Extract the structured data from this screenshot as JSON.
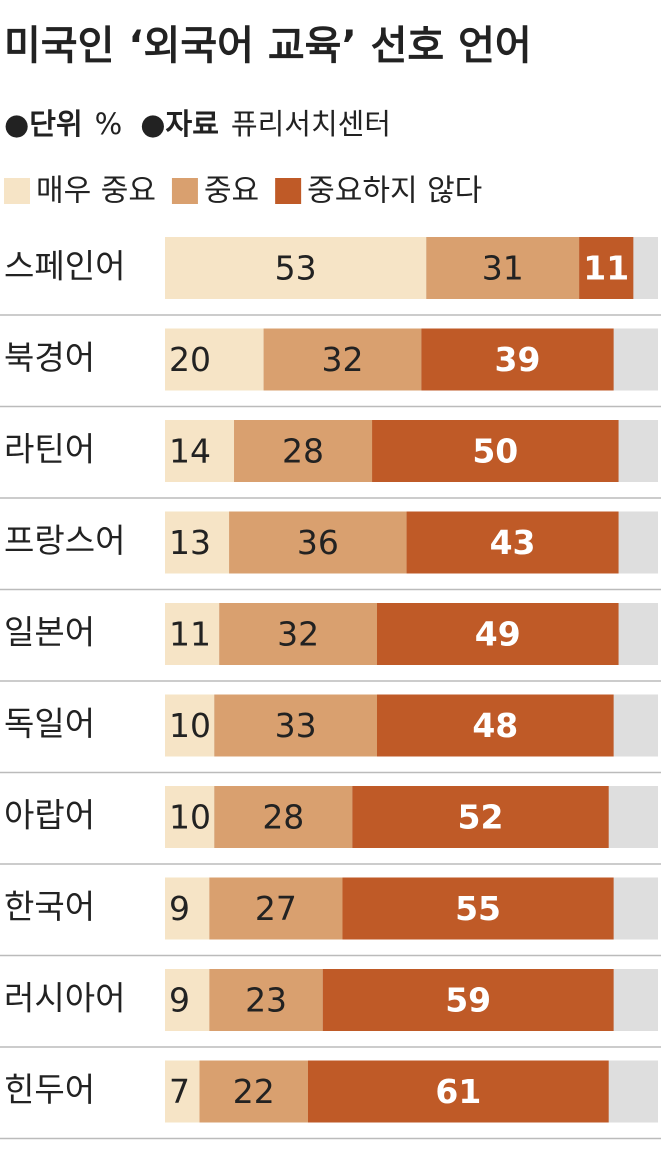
{
  "chart_data": {
    "type": "stacked-bar-horizontal",
    "title": "미국인 ‘외국어 교육’ 선호 언어",
    "unit_label": "●단위",
    "unit": "%",
    "source_label": "●자료",
    "source": "퓨리서치센터",
    "categories": [
      "스페인어",
      "북경어",
      "라틴어",
      "프랑스어",
      "일본어",
      "독일어",
      "아랍어",
      "한국어",
      "러시아어",
      "힌두어"
    ],
    "series": [
      {
        "name": "매우 중요",
        "color": "#f6e4c6",
        "values": [
          53,
          20,
          14,
          13,
          11,
          10,
          10,
          9,
          9,
          7
        ]
      },
      {
        "name": "중요",
        "color": "#d9a06f",
        "values": [
          31,
          32,
          28,
          36,
          32,
          33,
          28,
          27,
          23,
          22
        ]
      },
      {
        "name": "중요하지 않다",
        "color": "#bf5a27",
        "values": [
          11,
          39,
          50,
          43,
          49,
          48,
          52,
          55,
          59,
          61
        ]
      }
    ],
    "xlim": [
      0,
      100
    ]
  }
}
